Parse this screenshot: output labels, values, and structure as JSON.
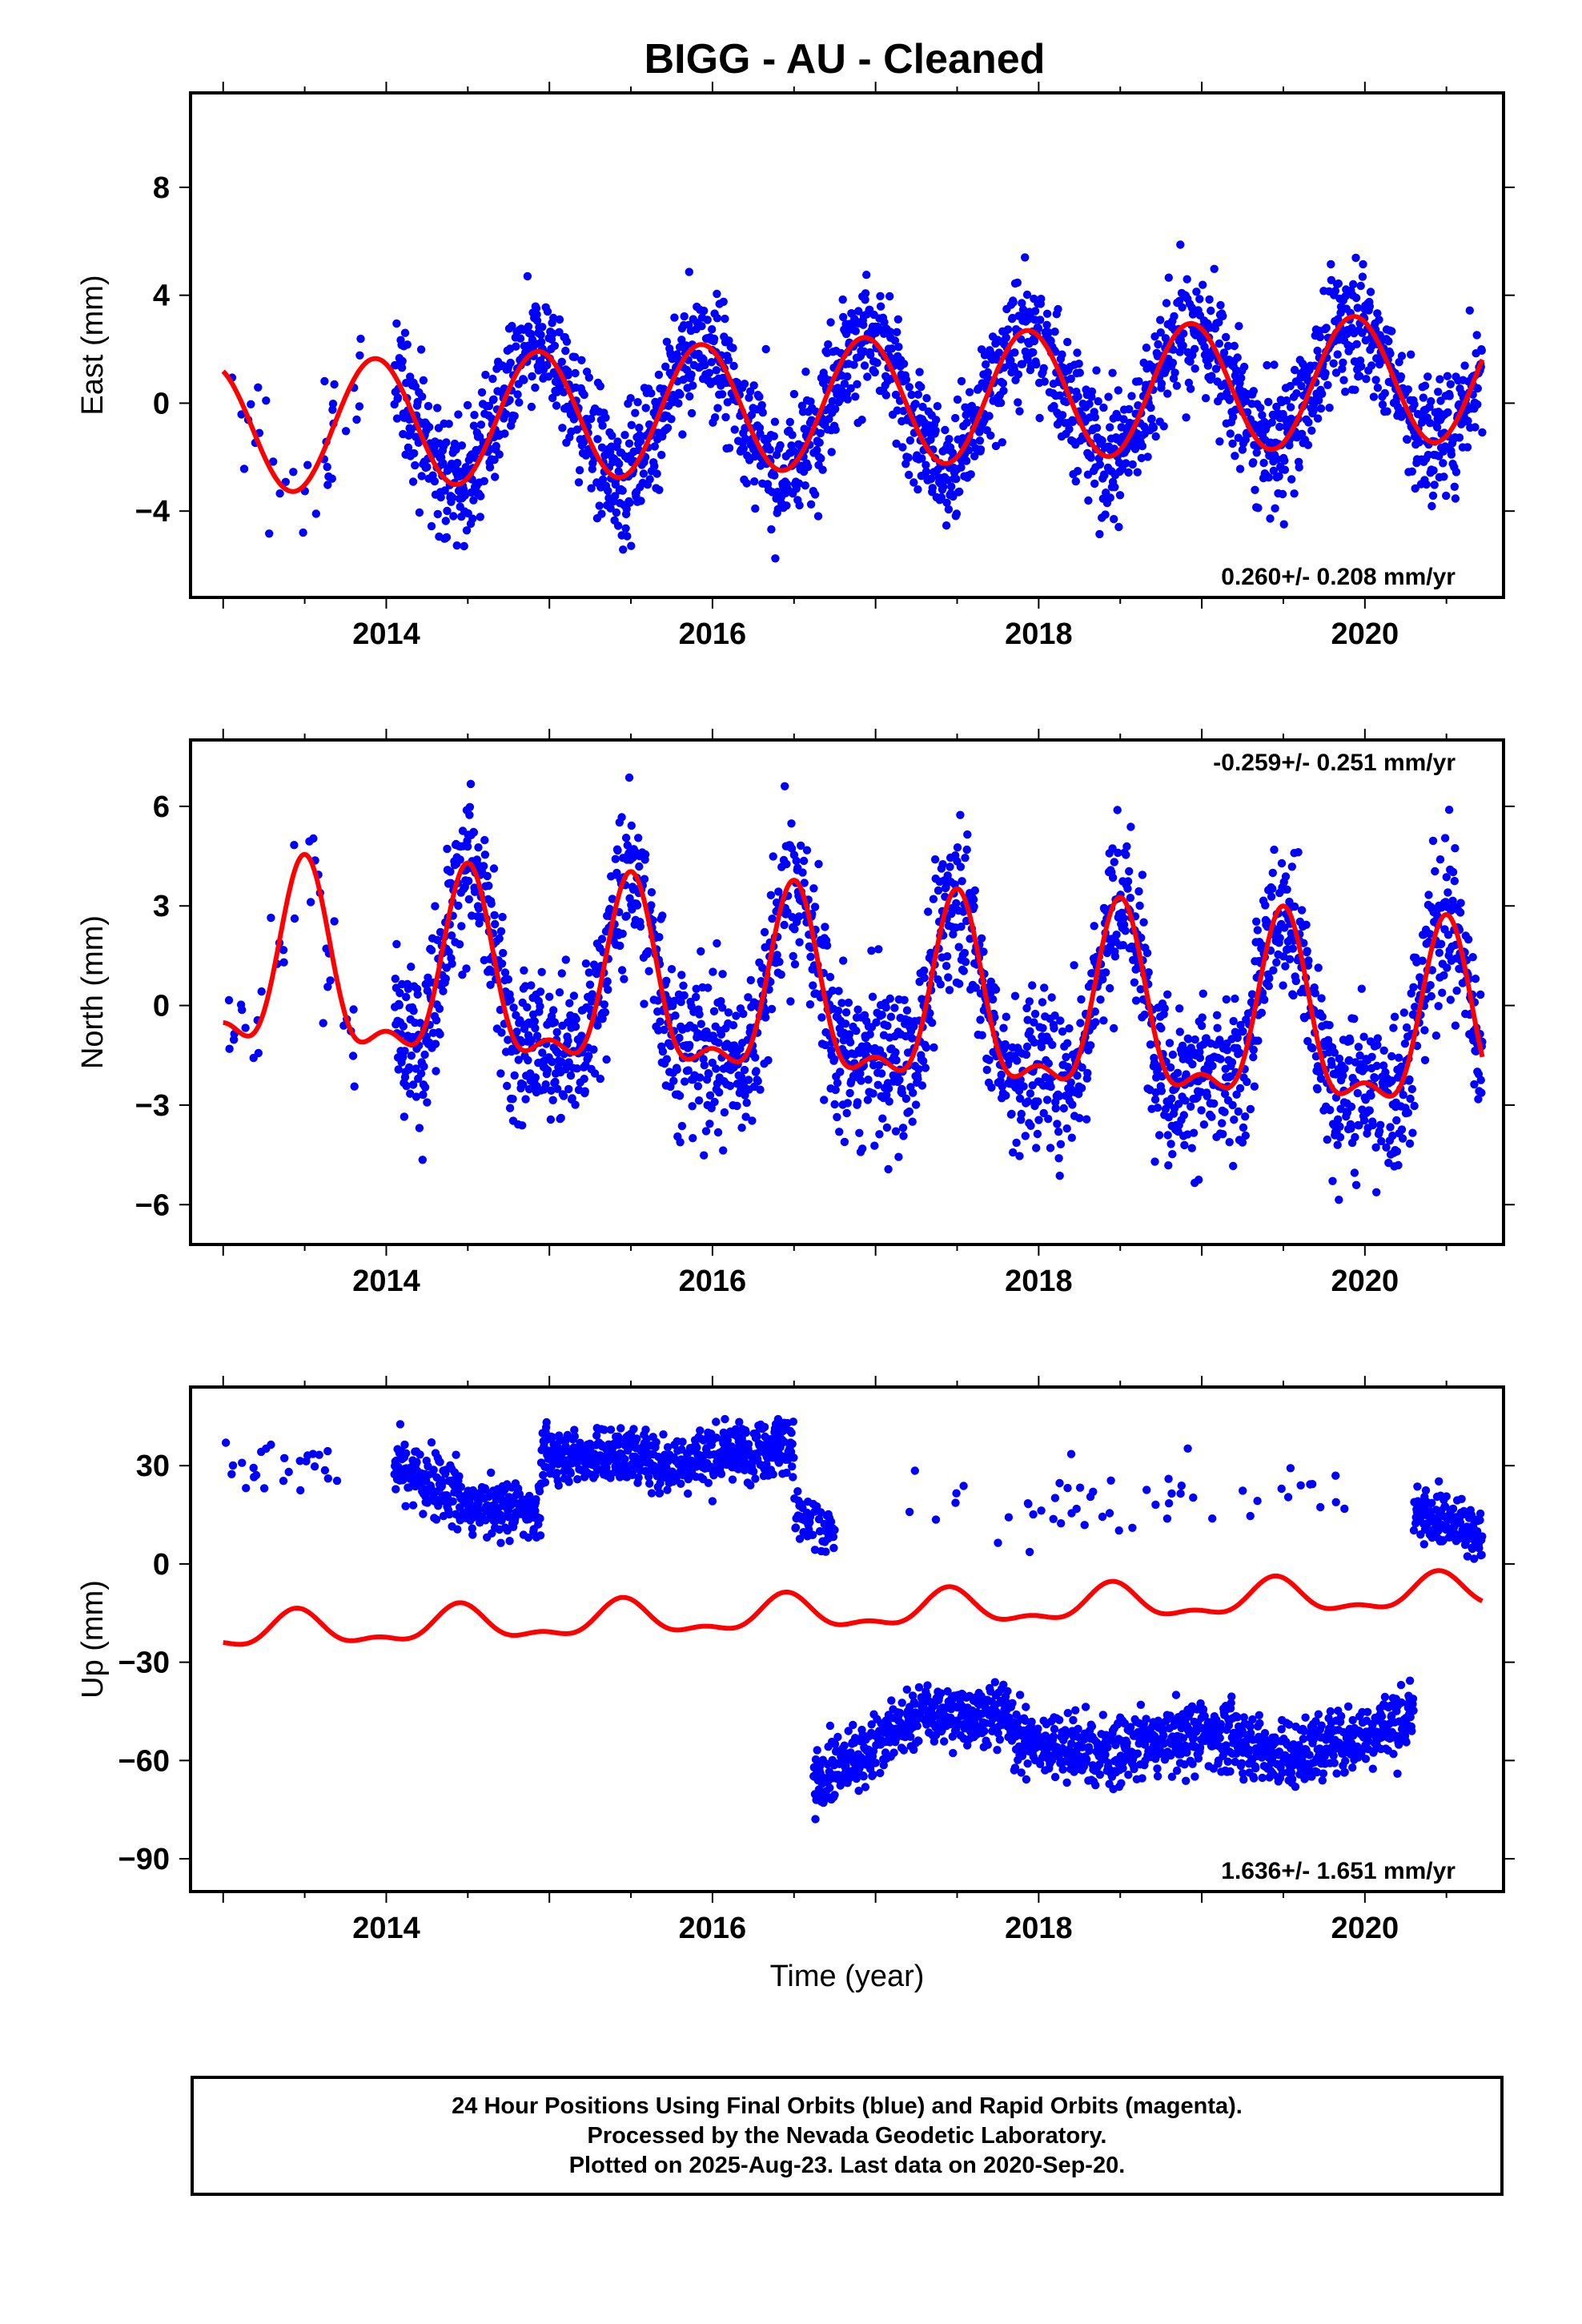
{
  "title": "BIGG  - AU - Cleaned",
  "footer": {
    "lines": [
      "24 Hour Positions Using Final Orbits (blue) and Rapid Orbits (magenta).",
      "Processed by the Nevada Geodetic Laboratory.",
      "Plotted on 2025-Aug-23. Last data on 2020-Sep-20."
    ]
  },
  "colors": {
    "points": "#0000ff",
    "model": "#ff0000",
    "frame": "#000000"
  },
  "chart_data": [
    {
      "type": "scatter",
      "ylabel": "East (mm)",
      "xlabel": "",
      "rate_label": "0.260+/- 0.208 mm/yr",
      "rate_position": "bottom-right",
      "xlim": [
        2012.8,
        2020.85
      ],
      "ylim": [
        -7.2,
        11.5
      ],
      "xticks": [
        2014,
        2016,
        2018,
        2020
      ],
      "xtick_labels": [
        "2014",
        "2016",
        "2018",
        "2020"
      ],
      "yticks": [
        -4,
        0,
        4,
        8
      ],
      "ytick_labels": [
        "−4",
        "0",
        "4",
        "8"
      ],
      "series": [
        {
          "kind": "points",
          "segments": [
            [
              2013.0,
              2013.85
            ],
            [
              2014.05,
              2020.72
            ]
          ],
          "trend": {
            "y0": 0.0,
            "rate": 0.26,
            "x0": 2016.8
          },
          "annual": {
            "amp": 2.4,
            "phase_peak": 0.93
          },
          "semiannual": {
            "amp": 0.0,
            "phase_peak": 0.0
          },
          "noise": 1.15,
          "daily_fraction": 0.9
        },
        {
          "kind": "model",
          "x_range": [
            2013.0,
            2020.72
          ],
          "trend": {
            "y0": 0.0,
            "rate": 0.26,
            "x0": 2016.8
          },
          "annual": {
            "amp": 2.4,
            "phase_peak": 0.93
          },
          "semiannual": {
            "amp": 0.0,
            "phase_peak": 0.0
          }
        }
      ]
    },
    {
      "type": "scatter",
      "ylabel": "North (mm)",
      "xlabel": "",
      "rate_label": "-0.259+/- 0.251 mm/yr",
      "rate_position": "top-right",
      "xlim": [
        2012.8,
        2020.85
      ],
      "ylim": [
        -7.2,
        8.0
      ],
      "xticks": [
        2014,
        2016,
        2018,
        2020
      ],
      "xtick_labels": [
        "2014",
        "2016",
        "2018",
        "2020"
      ],
      "yticks": [
        -6,
        -3,
        0,
        3,
        6
      ],
      "ytick_labels": [
        "−6",
        "−3",
        "0",
        "3",
        "6"
      ],
      "series": [
        {
          "kind": "points",
          "segments": [
            [
              2013.0,
              2013.85
            ],
            [
              2014.05,
              2020.72
            ]
          ],
          "trend": {
            "y0": 0.0,
            "rate": -0.259,
            "x0": 2016.8
          },
          "annual": {
            "amp": 2.6,
            "phase_peak": 0.5
          },
          "semiannual": {
            "amp": 1.1,
            "phase_peak": 0.5
          },
          "noise": 1.2,
          "daily_fraction": 0.9
        },
        {
          "kind": "model",
          "x_range": [
            2013.0,
            2020.72
          ],
          "trend": {
            "y0": 0.0,
            "rate": -0.259,
            "x0": 2016.8
          },
          "annual": {
            "amp": 2.6,
            "phase_peak": 0.5
          },
          "semiannual": {
            "amp": 1.1,
            "phase_peak": 0.5
          }
        }
      ]
    },
    {
      "type": "scatter",
      "ylabel": "Up (mm)",
      "xlabel": "Time (year)",
      "rate_label": "1.636+/- 1.651 mm/yr",
      "rate_position": "bottom-right",
      "xlim": [
        2012.8,
        2020.85
      ],
      "ylim": [
        -100,
        54
      ],
      "xticks": [
        2014,
        2016,
        2018,
        2020
      ],
      "xtick_labels": [
        "2014",
        "2016",
        "2018",
        "2020"
      ],
      "yticks": [
        -90,
        -60,
        -30,
        0,
        30
      ],
      "ytick_labels": [
        "−90",
        "−60",
        "−30",
        "0",
        "30"
      ],
      "series": [
        {
          "kind": "points",
          "blocks": [
            {
              "x": [
                2013.0,
                2013.7
              ],
              "y0": 31,
              "rate": 0,
              "noise": 4.0,
              "density": 0.1
            },
            {
              "x": [
                2014.05,
                2014.45
              ],
              "y0": 30,
              "rate": -25,
              "noise": 5.0,
              "density": 0.95
            },
            {
              "x": [
                2014.45,
                2014.95
              ],
              "y0": 17,
              "rate": 0,
              "noise": 4.0,
              "density": 0.95
            },
            {
              "x": [
                2014.95,
                2015.6
              ],
              "y0": 33,
              "rate": 0,
              "noise": 4.0,
              "density": 0.95
            },
            {
              "x": [
                2015.6,
                2016.5
              ],
              "y0": 30,
              "rate": 8,
              "noise": 4.5,
              "density": 0.95
            },
            {
              "x": [
                2016.5,
                2016.75
              ],
              "y0": 15,
              "rate": -30,
              "noise": 5.0,
              "density": 0.6
            },
            {
              "x": [
                2016.62,
                2017.25
              ],
              "y0": -68,
              "rate": 35,
              "noise": 5.0,
              "density": 0.95
            },
            {
              "x": [
                2017.25,
                2017.85
              ],
              "y0": -46,
              "rate": 0,
              "noise": 4.5,
              "density": 0.95
            },
            {
              "x": [
                2017.85,
                2018.5
              ],
              "y0": -53,
              "rate": -8,
              "noise": 5.0,
              "density": 0.95
            },
            {
              "x": [
                2018.5,
                2019.1
              ],
              "y0": -57,
              "rate": 10,
              "noise": 5.0,
              "density": 0.95
            },
            {
              "x": [
                2019.1,
                2019.6
              ],
              "y0": -52,
              "rate": -16,
              "noise": 5.0,
              "density": 0.95
            },
            {
              "x": [
                2019.6,
                2020.3
              ],
              "y0": -58,
              "rate": 16,
              "noise": 5.0,
              "density": 0.95
            },
            {
              "x": [
                2017.2,
                2019.9
              ],
              "y0": 20,
              "rate": 0,
              "noise": 6.0,
              "density": 0.06
            },
            {
              "x": [
                2020.3,
                2020.72
              ],
              "y0": 15,
              "rate": -12,
              "noise": 4.0,
              "density": 0.95
            }
          ]
        },
        {
          "kind": "model",
          "x_range": [
            2013.0,
            2020.72
          ],
          "trend": {
            "y0": -10.0,
            "rate": 1.636,
            "x0": 2016.8
          },
          "annual": {
            "amp": 4.8,
            "phase_peak": 0.45
          },
          "semiannual": {
            "amp": 2.2,
            "phase_peak": 0.45
          },
          "up_offset": -5.0
        }
      ]
    }
  ]
}
